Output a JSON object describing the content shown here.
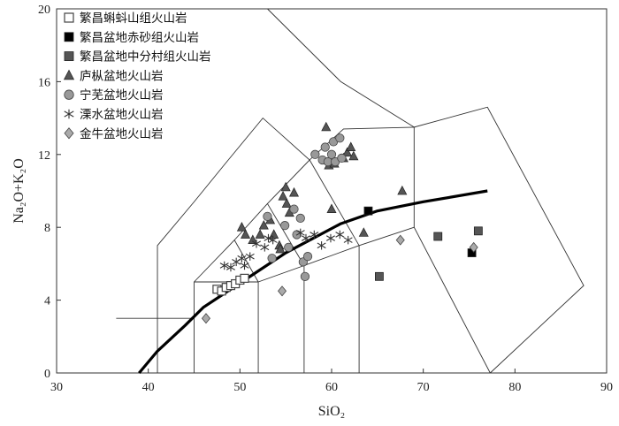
{
  "chart_data": {
    "type": "scatter",
    "xlabel": "SiO₂",
    "ylabel": "Na₂O+K₂O",
    "xlim": [
      30,
      90
    ],
    "ylim": [
      0,
      20
    ],
    "xticks": [
      30,
      40,
      50,
      60,
      70,
      80,
      90
    ],
    "yticks": [
      0,
      4,
      8,
      12,
      16,
      20
    ],
    "grid": false,
    "legend_position": "top-left",
    "boundary_line": {
      "style": "thick",
      "points": [
        [
          39,
          0
        ],
        [
          41,
          1.2
        ],
        [
          44,
          2.6
        ],
        [
          46,
          3.6
        ],
        [
          49,
          4.6
        ],
        [
          52,
          5.6
        ],
        [
          55,
          6.6
        ],
        [
          58,
          7.4
        ],
        [
          61,
          8.2
        ],
        [
          65,
          8.9
        ],
        [
          70,
          9.4
        ],
        [
          77,
          10.0
        ]
      ]
    },
    "field_lines": [
      [
        [
          41,
          0
        ],
        [
          41,
          7
        ],
        [
          45,
          9.4
        ],
        [
          48.4,
          11.5
        ],
        [
          52.5,
          14
        ],
        [
          57.6,
          11.7
        ],
        [
          53,
          9.3
        ],
        [
          49.4,
          7.3
        ],
        [
          45,
          5
        ],
        [
          45,
          0
        ]
      ],
      [
        [
          45,
          5
        ],
        [
          52,
          5
        ],
        [
          52,
          0
        ]
      ],
      [
        [
          52,
          5
        ],
        [
          57,
          5.9
        ],
        [
          57,
          0
        ]
      ],
      [
        [
          57,
          5.9
        ],
        [
          63,
          7
        ],
        [
          63,
          0
        ]
      ],
      [
        [
          63,
          7
        ],
        [
          69,
          8
        ],
        [
          77.3,
          0
        ]
      ],
      [
        [
          69,
          8
        ],
        [
          69,
          13.5
        ],
        [
          77,
          14.6
        ],
        [
          87.5,
          4.8
        ],
        [
          77.3,
          0
        ]
      ],
      [
        [
          52,
          5
        ],
        [
          49.4,
          7.3
        ]
      ],
      [
        [
          57,
          5.9
        ],
        [
          53,
          9.3
        ]
      ],
      [
        [
          63,
          7
        ],
        [
          57.6,
          11.7
        ]
      ],
      [
        [
          69,
          13.5
        ],
        [
          61,
          16
        ],
        [
          53,
          20
        ]
      ],
      [
        [
          57.6,
          11.7
        ],
        [
          61.3,
          13.4
        ],
        [
          69.1,
          13.5
        ]
      ],
      [
        [
          36.5,
          3
        ],
        [
          45,
          3
        ]
      ]
    ],
    "series": [
      {
        "name": "繁昌蝌蚪山组火山岩",
        "marker": "square-open",
        "color": "#444444",
        "x": [
          47.5,
          48.0,
          48.5,
          49.0,
          49.5,
          50.0,
          50.5
        ],
        "y": [
          4.6,
          4.5,
          4.7,
          4.8,
          4.9,
          5.1,
          5.2
        ]
      },
      {
        "name": "繁昌盆地赤砂组火山岩",
        "marker": "square-filled",
        "color": "#000000",
        "x": [
          64.0,
          75.3
        ],
        "y": [
          8.9,
          6.6
        ]
      },
      {
        "name": "繁昌盆地中分村组火山岩",
        "marker": "square-gray",
        "color": "#555555",
        "x": [
          65.2,
          71.6,
          76.0
        ],
        "y": [
          5.3,
          7.5,
          7.8
        ]
      },
      {
        "name": "庐枞盆地火山岩",
        "marker": "triangle",
        "color": "#555555",
        "x": [
          50.2,
          50.6,
          51.4,
          52.2,
          52.6,
          53.3,
          53.7,
          54.3,
          54.7,
          55.0,
          55.1,
          55.4,
          55.9,
          59.4,
          59.7,
          60.3,
          61.3,
          61.7,
          62.1,
          62.4,
          63.5,
          67.7,
          60.0,
          54.4
        ],
        "y": [
          8.0,
          7.6,
          7.3,
          7.6,
          8.1,
          8.4,
          7.6,
          7.0,
          9.7,
          10.2,
          9.3,
          8.8,
          9.9,
          13.5,
          11.4,
          11.5,
          11.8,
          12.1,
          12.4,
          11.9,
          7.7,
          10.0,
          9.0,
          6.8
        ]
      },
      {
        "name": "宁芜盆地火山岩",
        "marker": "circle",
        "color": "#999999",
        "x": [
          53.0,
          53.5,
          54.9,
          55.3,
          55.9,
          56.2,
          56.6,
          56.9,
          57.1,
          57.4,
          58.2,
          59.0,
          59.3,
          59.6,
          60.0,
          60.2,
          60.4,
          60.9,
          61.1
        ],
        "y": [
          8.6,
          6.3,
          8.1,
          6.9,
          9.0,
          7.6,
          8.5,
          6.1,
          5.3,
          6.4,
          12.0,
          11.7,
          12.4,
          11.6,
          12.0,
          12.7,
          11.6,
          12.9,
          11.8
        ]
      },
      {
        "name": "溧水盆地火山岩",
        "marker": "star",
        "color": "#333333",
        "x": [
          48.3,
          49.0,
          49.6,
          50.2,
          50.5,
          51.1,
          51.8,
          52.7,
          53.1,
          53.6,
          56.6,
          57.2,
          58.1,
          58.9,
          59.9,
          60.9,
          61.8
        ],
        "y": [
          5.9,
          5.8,
          6.1,
          6.3,
          5.9,
          6.4,
          7.1,
          6.9,
          7.4,
          7.3,
          7.7,
          7.4,
          7.6,
          7.0,
          7.4,
          7.6,
          7.3
        ]
      },
      {
        "name": "金牛盆地火山岩",
        "marker": "diamond",
        "color": "#aaaaaa",
        "x": [
          46.3,
          54.6,
          67.5,
          75.5
        ],
        "y": [
          3.0,
          4.5,
          7.3,
          6.9
        ]
      }
    ]
  }
}
